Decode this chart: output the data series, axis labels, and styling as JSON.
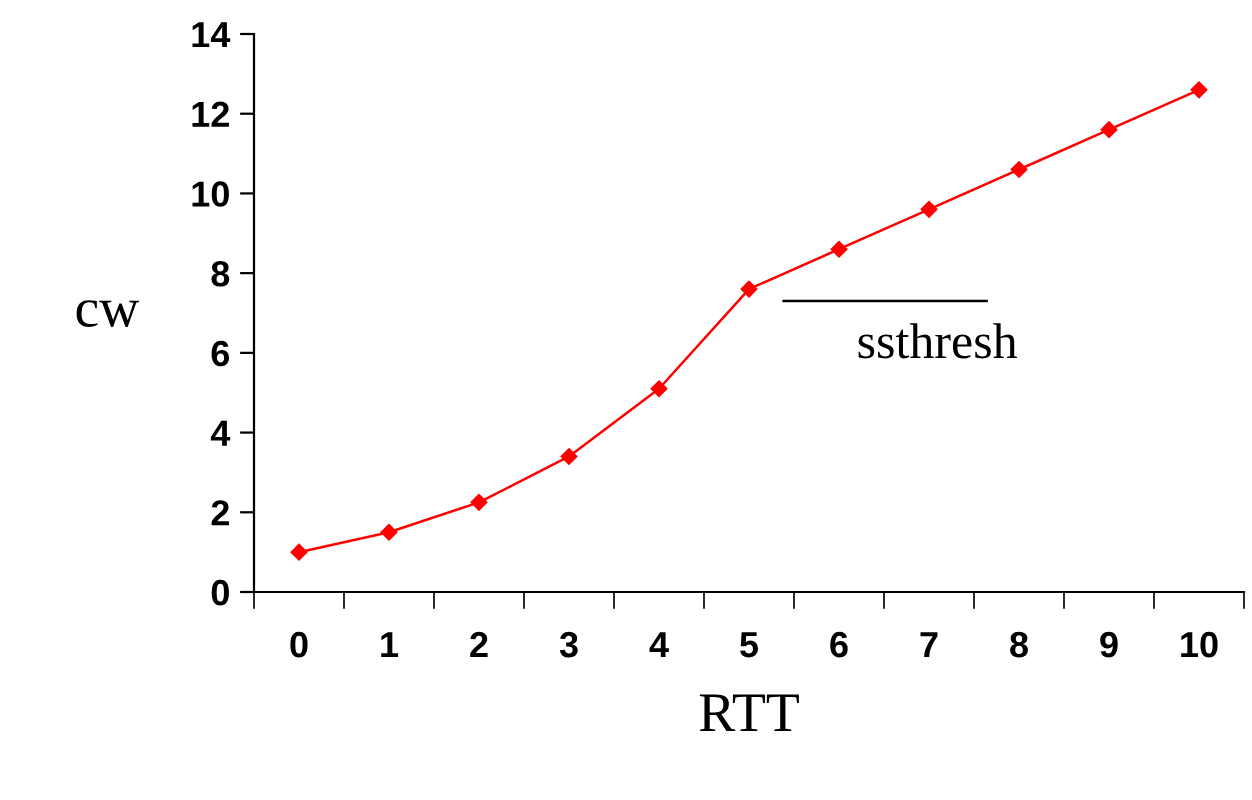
{
  "chart_data": {
    "type": "line",
    "xlabel": "RTT",
    "ylabel": "cw",
    "categories": [
      "0",
      "1",
      "2",
      "3",
      "4",
      "5",
      "6",
      "7",
      "8",
      "9",
      "10"
    ],
    "series": [
      {
        "color": "#ff0000",
        "values": [
          1,
          1.5,
          2.25,
          3.4,
          5.1,
          7.6,
          8.6,
          9.6,
          10.6,
          11.6,
          12.6
        ]
      }
    ],
    "ylim": [
      0,
      14
    ],
    "yticks": [
      0,
      2,
      4,
      6,
      8,
      10,
      12,
      14
    ],
    "grid": false,
    "legend": false,
    "marker": "diamond",
    "line_style": "solid",
    "ref_lines": [
      {
        "axis": "y",
        "value": 7.3,
        "label": "ssthresh",
        "color": "#000000",
        "line_style": "solid"
      }
    ]
  }
}
